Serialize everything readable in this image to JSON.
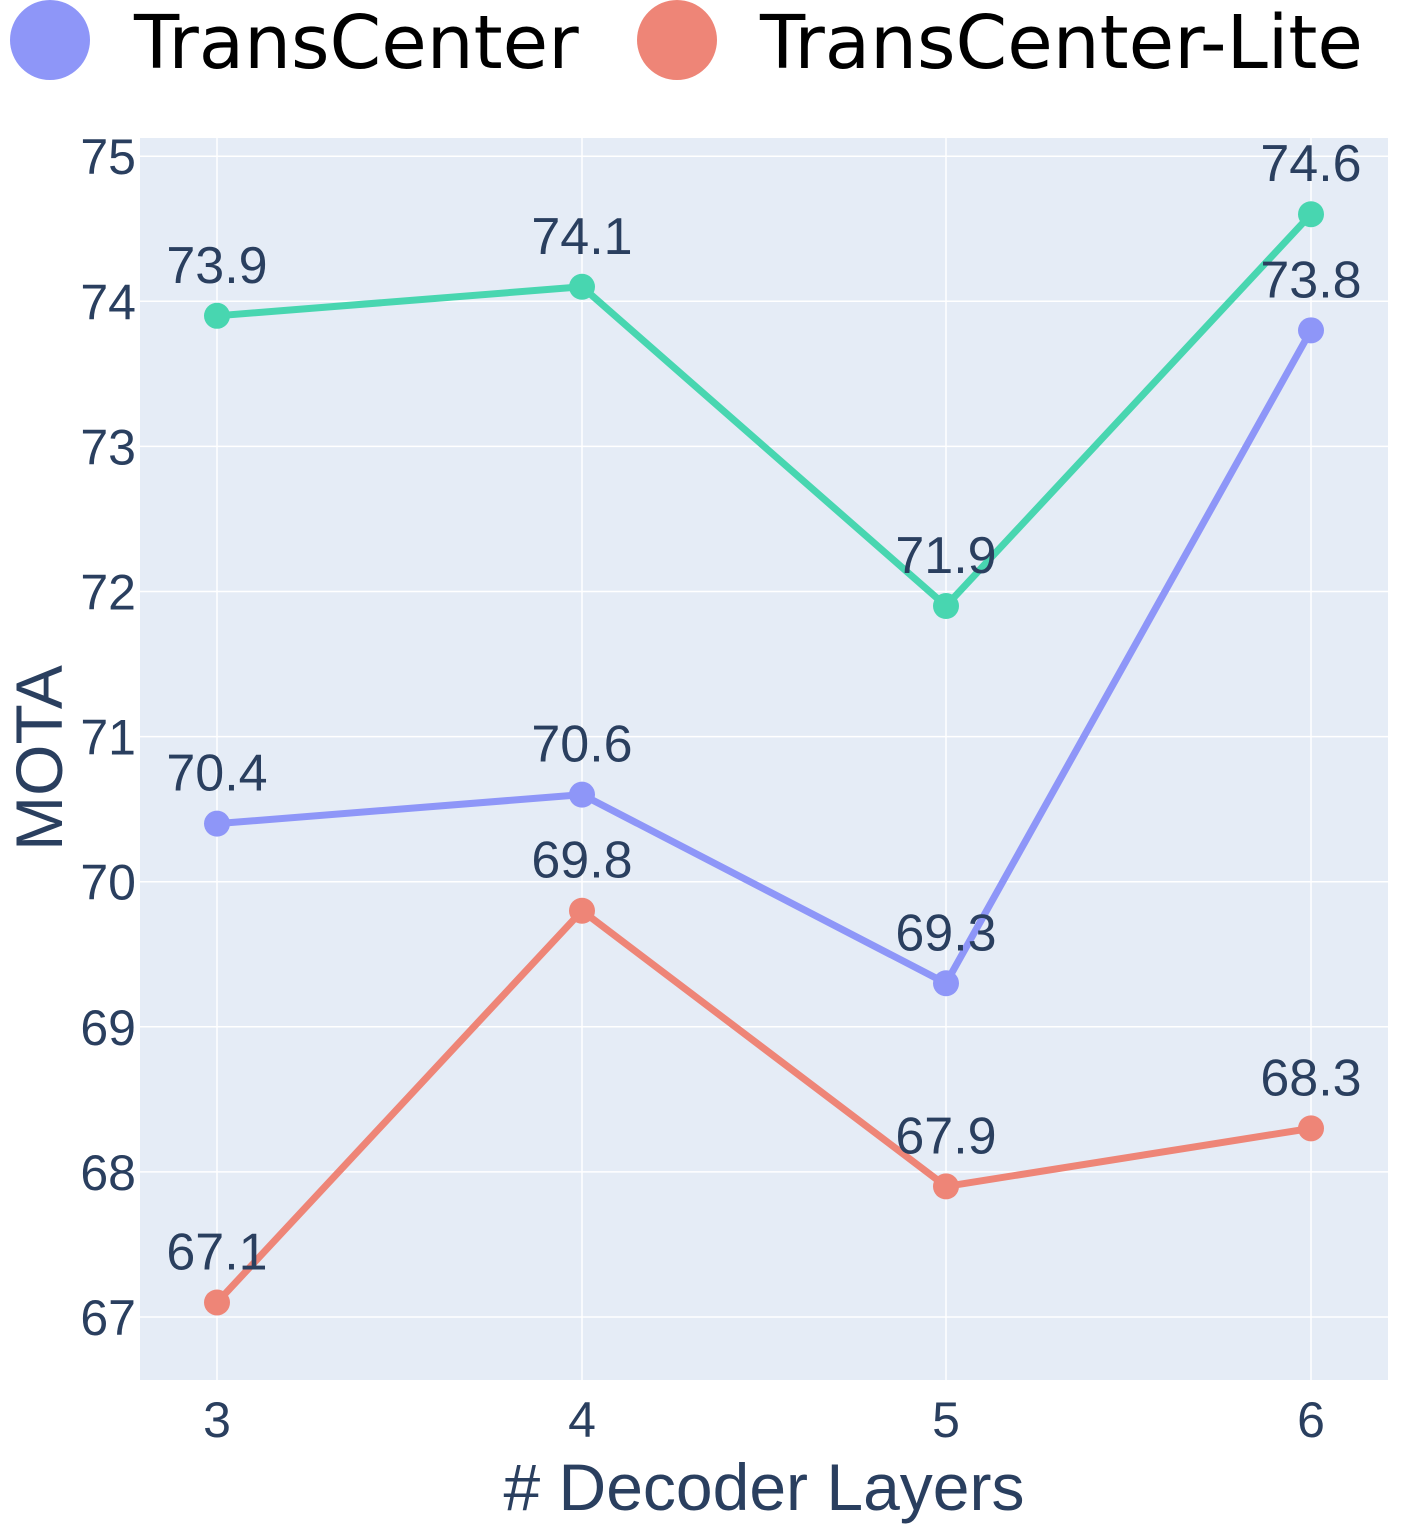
{
  "chart_data": {
    "type": "line",
    "title": "",
    "xlabel": "# Decoder Layers",
    "ylabel": "MOTA",
    "x": [
      3,
      4,
      5,
      6
    ],
    "ylim": [
      66.6,
      75.15
    ],
    "y_ticks": [
      67,
      68,
      69,
      70,
      71,
      72,
      73,
      74,
      75
    ],
    "x_ticks": [
      3,
      4,
      5,
      6
    ],
    "grid": true,
    "legend_placement": "top",
    "background_color": "#e5ecf6",
    "series": [
      {
        "name": "",
        "color": "#48d6b0",
        "values": [
          73.9,
          74.1,
          71.9,
          74.6
        ],
        "labels": [
          "73.9",
          "74.1",
          "71.9",
          "74.6"
        ]
      },
      {
        "name": "TransCenter",
        "color": "#8e96f8",
        "values": [
          70.4,
          70.6,
          69.3,
          73.8
        ],
        "labels": [
          "70.4",
          "70.6",
          "69.3",
          "73.8"
        ]
      },
      {
        "name": "TransCenter-Lite",
        "color": "#ee8577",
        "values": [
          67.1,
          69.8,
          67.9,
          68.3
        ],
        "labels": [
          "67.1",
          "69.8",
          "67.9",
          "68.3"
        ]
      }
    ],
    "legend": [
      {
        "name": "TransCenter",
        "color": "#8e96f8"
      },
      {
        "name": "TransCenter-Lite",
        "color": "#ee8577"
      }
    ]
  }
}
